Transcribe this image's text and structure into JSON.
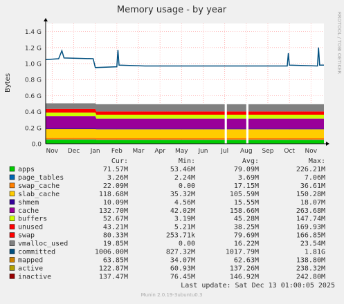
{
  "chart_data": {
    "type": "area",
    "title": "Memory usage - by year",
    "ylabel": "Bytes",
    "side_label": "RRDTOOL / TOBI OETIKER",
    "footer": "Munin 2.0.19-3ubuntu0.3",
    "ylim": [
      0,
      1.5
    ],
    "y_unit_note": "GiB",
    "y_ticks": [
      {
        "value": 0.0,
        "label": "0.0"
      },
      {
        "value": 0.2,
        "label": "0.2 G"
      },
      {
        "value": 0.4,
        "label": "0.4 G"
      },
      {
        "value": 0.6,
        "label": "0.6 G"
      },
      {
        "value": 0.8,
        "label": "0.8 G"
      },
      {
        "value": 1.0,
        "label": "1.0 G"
      },
      {
        "value": 1.2,
        "label": "1.2 G"
      },
      {
        "value": 1.4,
        "label": "1.4 G"
      }
    ],
    "x_months": [
      "Nov",
      "Dec",
      "Jan",
      "Feb",
      "Mar",
      "Apr",
      "May",
      "Jun",
      "Jul",
      "Aug",
      "Sep",
      "Oct",
      "Nov"
    ],
    "x_range_months": [
      -0.3,
      12.6
    ],
    "gaps": [
      [
        8.0,
        8.1
      ],
      [
        9.0,
        9.1
      ]
    ],
    "stack": [
      {
        "name": "apps",
        "color": "#00cc00",
        "before": 0.05,
        "after": 0.045
      },
      {
        "name": "page_tables",
        "color": "#0066b3",
        "before": 0.004,
        "after": 0.004
      },
      {
        "name": "swap_cache",
        "color": "#ff8000",
        "before": 0.018,
        "after": 0.02
      },
      {
        "name": "slab_cache",
        "color": "#ffcc00",
        "before": 0.11,
        "after": 0.11
      },
      {
        "name": "shmem",
        "color": "#330099",
        "before": 0.012,
        "after": 0.01
      },
      {
        "name": "cache",
        "color": "#990099",
        "before": 0.15,
        "after": 0.125
      },
      {
        "name": "buffers",
        "color": "#ccff00",
        "before": 0.045,
        "after": 0.048
      },
      {
        "name": "unused",
        "color": "#ff0000",
        "before": 0.045,
        "after": 0.04
      },
      {
        "name": "swap",
        "color": "#808080",
        "before": 0.07,
        "after": 0.09
      }
    ],
    "committed_line": {
      "name": "committed",
      "color": "#004f7f",
      "points": [
        [
          -0.3,
          1.05
        ],
        [
          0.3,
          1.06
        ],
        [
          0.45,
          1.16
        ],
        [
          0.55,
          1.07
        ],
        [
          1.9,
          1.06
        ],
        [
          2.0,
          0.95
        ],
        [
          3.0,
          0.96
        ],
        [
          3.05,
          1.17
        ],
        [
          3.1,
          0.98
        ],
        [
          4.3,
          0.97
        ],
        [
          6.7,
          0.97
        ],
        [
          10.9,
          0.97
        ],
        [
          10.95,
          1.13
        ],
        [
          11.0,
          0.98
        ],
        [
          12.3,
          0.97
        ],
        [
          12.35,
          1.2
        ],
        [
          12.4,
          0.98
        ],
        [
          12.6,
          0.98
        ]
      ]
    },
    "legend_header": [
      "Cur:",
      "Min:",
      "Avg:",
      "Max:"
    ],
    "legend": [
      {
        "name": "apps",
        "color": "#00cc00",
        "cur": "71.57M",
        "min": "53.46M",
        "avg": "79.09M",
        "max": "226.21M"
      },
      {
        "name": "page_tables",
        "color": "#0066b3",
        "cur": "3.26M",
        "min": "2.24M",
        "avg": "3.69M",
        "max": "7.06M"
      },
      {
        "name": "swap_cache",
        "color": "#ff8000",
        "cur": "22.09M",
        "min": "0.00",
        "avg": "17.15M",
        "max": "36.61M"
      },
      {
        "name": "slab_cache",
        "color": "#ffcc00",
        "cur": "118.68M",
        "min": "35.32M",
        "avg": "105.59M",
        "max": "150.28M"
      },
      {
        "name": "shmem",
        "color": "#330099",
        "cur": "10.09M",
        "min": "4.56M",
        "avg": "15.55M",
        "max": "18.07M"
      },
      {
        "name": "cache",
        "color": "#990099",
        "cur": "132.70M",
        "min": "42.02M",
        "avg": "158.66M",
        "max": "263.68M"
      },
      {
        "name": "buffers",
        "color": "#ccff00",
        "cur": "52.67M",
        "min": "3.19M",
        "avg": "45.28M",
        "max": "147.74M"
      },
      {
        "name": "unused",
        "color": "#ff0000",
        "cur": "43.21M",
        "min": "5.21M",
        "avg": "38.25M",
        "max": "169.93M"
      },
      {
        "name": "swap",
        "color": "#ff0000",
        "cur": "80.33M",
        "min": "253.71k",
        "avg": "79.69M",
        "max": "166.85M"
      },
      {
        "name": "vmalloc_used",
        "color": "#808080",
        "cur": "19.85M",
        "min": "0.00",
        "avg": "16.22M",
        "max": "23.54M"
      },
      {
        "name": "committed",
        "color": "#004f7f",
        "cur": "1006.00M",
        "min": "827.32M",
        "avg": "1017.79M",
        "max": "1.81G"
      },
      {
        "name": "mapped",
        "color": "#cc8000",
        "cur": "63.85M",
        "min": "34.07M",
        "avg": "62.63M",
        "max": "138.80M"
      },
      {
        "name": "active",
        "color": "#b3a000",
        "cur": "122.87M",
        "min": "60.93M",
        "avg": "137.26M",
        "max": "238.32M"
      },
      {
        "name": "inactive",
        "color": "#990000",
        "cur": "137.47M",
        "min": "76.45M",
        "avg": "146.92M",
        "max": "242.80M"
      }
    ],
    "last_update": "Last update:  Sat Dec 13 01:00:05 2025"
  }
}
